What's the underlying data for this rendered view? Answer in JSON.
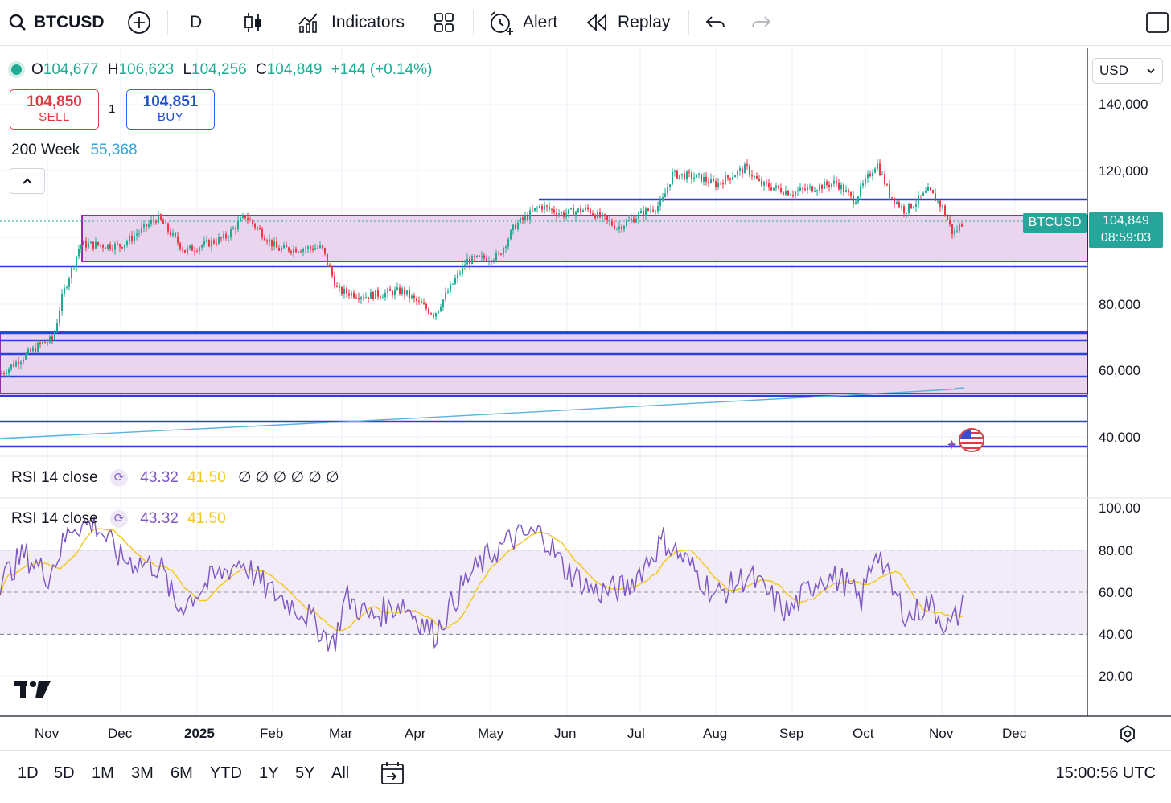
{
  "toolbar": {
    "symbol": "BTCUSD",
    "interval": "D",
    "indicators_label": "Indicators",
    "alert_label": "Alert",
    "replay_label": "Replay"
  },
  "legend": {
    "open_key": "O",
    "open": "104,677",
    "high_key": "H",
    "high": "106,623",
    "low_key": "L",
    "low": "104,256",
    "close_key": "C",
    "close": "104,849",
    "change": "+144 (+0.14%)"
  },
  "trade": {
    "sell_price": "104,850",
    "sell_label": "SELL",
    "quantity": "1",
    "buy_price": "104,851",
    "buy_label": "BUY"
  },
  "ma": {
    "label": "200 Week",
    "value": "55,368"
  },
  "price_axis": {
    "currency": "USD",
    "labels": [
      "140,000",
      "120,000",
      "80,000",
      "60,000",
      "40,000"
    ]
  },
  "last_price": {
    "symbol": "BTCUSD",
    "price": "104,849",
    "countdown": "08:59:03"
  },
  "rsi_collapsed": {
    "label": "RSI 14 close",
    "rsi": "43.32",
    "ma": "41.50",
    "empty": "∅ ∅ ∅ ∅ ∅ ∅"
  },
  "rsi_pane": {
    "label": "RSI 14 close",
    "rsi": "43.32",
    "ma": "41.50",
    "axis_labels": [
      "100.00",
      "80.00",
      "60.00",
      "40.00",
      "20.00"
    ]
  },
  "time_axis": [
    "Nov",
    "Dec",
    "2025",
    "Feb",
    "Mar",
    "Apr",
    "May",
    "Jun",
    "Jul",
    "Aug",
    "Sep",
    "Oct",
    "Nov",
    "Dec"
  ],
  "ranges": [
    "1D",
    "5D",
    "1M",
    "3M",
    "6M",
    "YTD",
    "1Y",
    "5Y",
    "All"
  ],
  "clock": "15:00:56 UTC",
  "colors": {
    "up": "#22ab94",
    "down": "#f23645",
    "zone": "#e9d5ee",
    "zone_border": "#9c27b0",
    "level_line": "#2a3fdc",
    "ma_line": "#5ab2e0",
    "rsi_line": "#7e57c2",
    "rsi_ma": "#f2c71b"
  }
}
